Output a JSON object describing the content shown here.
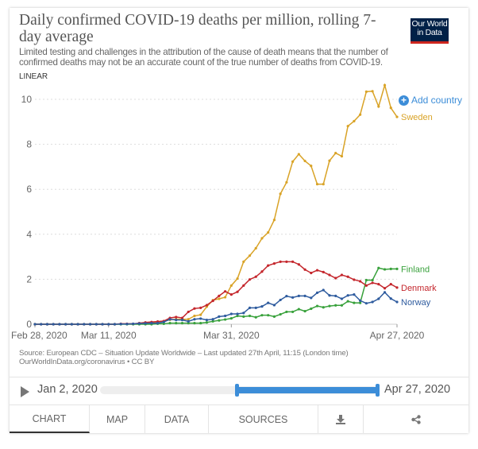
{
  "header": {
    "title": "Daily confirmed COVID-19 deaths per million, rolling 7-day average",
    "subtitle": "Limited testing and challenges in the attribution of the cause of death means that the number of confirmed deaths may not be an accurate count of the true number of deaths from COVID-19.",
    "scale_label": "LINEAR",
    "logo_text": "Our World in Data"
  },
  "add_country_label": "Add country",
  "colors": {
    "accent": "#3c8dd8",
    "logo_bg": "#002147",
    "logo_bar": "#ce261e"
  },
  "chart_data": {
    "type": "line",
    "title": "Daily confirmed COVID-19 deaths per million, rolling 7-day average",
    "x_start": "2020-02-28",
    "x_end": "2020-04-27",
    "x_step": "1 day",
    "xlim": [
      "2020-02-28",
      "2020-04-27"
    ],
    "ylim": [
      0,
      10
    ],
    "y_ticks": [
      "0",
      "2",
      "4",
      "6",
      "8",
      "10"
    ],
    "x_ticks": [
      {
        "date": "2020-02-28",
        "label": "Feb 28, 2020"
      },
      {
        "date": "2020-03-11",
        "label": "Mar 11, 2020"
      },
      {
        "date": "2020-03-31",
        "label": "Mar 31, 2020"
      },
      {
        "date": "2020-04-27",
        "label": "Apr 27, 2020"
      }
    ],
    "grid": "horizontal dotted",
    "legend": "line-end labels, right",
    "series": [
      {
        "name": "Sweden",
        "color": "#d9a327",
        "values": [
          0,
          0,
          0,
          0,
          0,
          0,
          0,
          0,
          0,
          0,
          0,
          0,
          0,
          0,
          0.01,
          0.01,
          0.01,
          0.03,
          0.07,
          0.08,
          0.1,
          0.14,
          0.2,
          0.22,
          0.22,
          0.22,
          0.37,
          0.42,
          0.78,
          1.07,
          1.13,
          1.2,
          1.72,
          2.03,
          2.78,
          3.05,
          3.38,
          3.82,
          4.08,
          4.64,
          5.8,
          6.31,
          7.23,
          7.56,
          7.26,
          7.04,
          6.23,
          6.23,
          7.27,
          7.61,
          7.47,
          8.81,
          9.03,
          9.32,
          10.34,
          10.36,
          9.68,
          10.63,
          9.62,
          9.22
        ]
      },
      {
        "name": "Finland",
        "color": "#38a13b",
        "values": [
          0,
          0,
          0,
          0,
          0,
          0,
          0,
          0,
          0,
          0,
          0,
          0,
          0,
          0,
          0,
          0,
          0,
          0,
          0,
          0,
          0.02,
          0.02,
          0.05,
          0.05,
          0.05,
          0.05,
          0.05,
          0.05,
          0.08,
          0.13,
          0.17,
          0.21,
          0.26,
          0.37,
          0.34,
          0.37,
          0.31,
          0.4,
          0.4,
          0.34,
          0.44,
          0.55,
          0.55,
          0.67,
          0.58,
          0.69,
          0.81,
          0.75,
          0.81,
          0.84,
          0.84,
          1.02,
          0.95,
          0.95,
          1.96,
          1.96,
          2.5,
          2.44,
          2.46,
          2.46
        ]
      },
      {
        "name": "Denmark",
        "color": "#c4262c",
        "values": [
          0,
          0,
          0,
          0,
          0,
          0,
          0,
          0,
          0,
          0,
          0,
          0,
          0,
          0,
          0.02,
          0.02,
          0.02,
          0.05,
          0.08,
          0.1,
          0.12,
          0.14,
          0.28,
          0.32,
          0.28,
          0.55,
          0.7,
          0.73,
          0.85,
          1.04,
          1.26,
          1.46,
          1.32,
          1.44,
          1.72,
          1.99,
          2.11,
          2.34,
          2.61,
          2.7,
          2.78,
          2.78,
          2.78,
          2.66,
          2.43,
          2.28,
          2.4,
          2.32,
          2.19,
          2.05,
          2.19,
          2.11,
          1.98,
          1.91,
          1.72,
          1.84,
          1.78,
          1.6,
          1.78,
          1.63
        ]
      },
      {
        "name": "Norway",
        "color": "#2e5b9e",
        "values": [
          0,
          0,
          0,
          0,
          0,
          0,
          0,
          0,
          0,
          0,
          0,
          0,
          0,
          0,
          0.01,
          0.01,
          0.02,
          0.03,
          0.04,
          0.05,
          0.05,
          0.1,
          0.22,
          0.19,
          0.19,
          0.13,
          0.22,
          0.25,
          0.19,
          0.22,
          0.34,
          0.37,
          0.46,
          0.46,
          0.5,
          0.73,
          0.73,
          0.79,
          0.95,
          0.85,
          1.08,
          1.25,
          1.19,
          1.26,
          1.26,
          1.17,
          1.4,
          1.52,
          1.28,
          1.26,
          1.13,
          1.28,
          1.32,
          1.05,
          0.93,
          0.99,
          1.13,
          1.42,
          1.14,
          0.99
        ]
      }
    ]
  },
  "footer": {
    "source": "Source: European CDC – Situation Update Worldwide – Last updated 27th April, 11:15 (London time)",
    "url": "OurWorldInData.org/coronavirus • CC BY"
  },
  "timeline": {
    "start_label": "Jan 2, 2020",
    "end_label": "Apr 27, 2020",
    "range_start": "2020-02-28",
    "range_end": "2020-04-27"
  },
  "tabs": [
    {
      "label": "CHART",
      "active": true
    },
    {
      "label": "MAP"
    },
    {
      "label": "DATA"
    },
    {
      "label": "SOURCES"
    },
    {
      "label": "",
      "icon": "download-icon"
    },
    {
      "label": "",
      "icon": "share-icon"
    }
  ]
}
